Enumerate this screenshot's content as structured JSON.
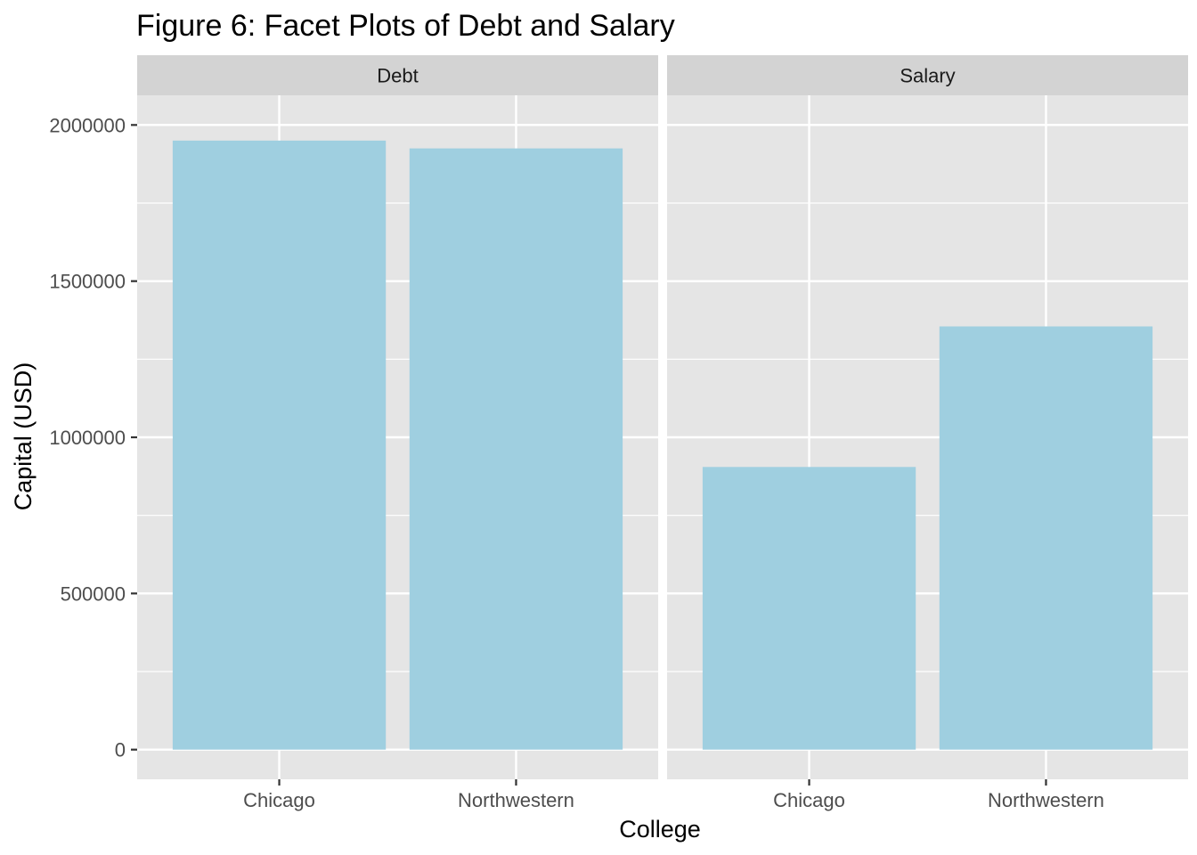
{
  "chart_data": {
    "type": "bar",
    "title": "Figure 6: Facet Plots of Debt and Salary",
    "xlabel": "College",
    "ylabel": "Capital (USD)",
    "ylim": [
      -95000,
      2095000
    ],
    "y_ticks": [
      0,
      500000,
      1000000,
      1500000,
      2000000
    ],
    "y_tick_labels": [
      "0",
      "500000",
      "1000000",
      "1500000",
      "2000000"
    ],
    "grid": true,
    "legend": "none",
    "categories": [
      "Chicago",
      "Northwestern"
    ],
    "facets": [
      {
        "name": "Debt",
        "values": [
          1950000,
          1925000
        ]
      },
      {
        "name": "Salary",
        "values": [
          905000,
          1355000
        ]
      }
    ],
    "colors": {
      "bar": "#9fcfe0",
      "panel_background": "#e5e5e5",
      "strip_background": "#d3d3d3",
      "grid": "#ffffff"
    }
  }
}
